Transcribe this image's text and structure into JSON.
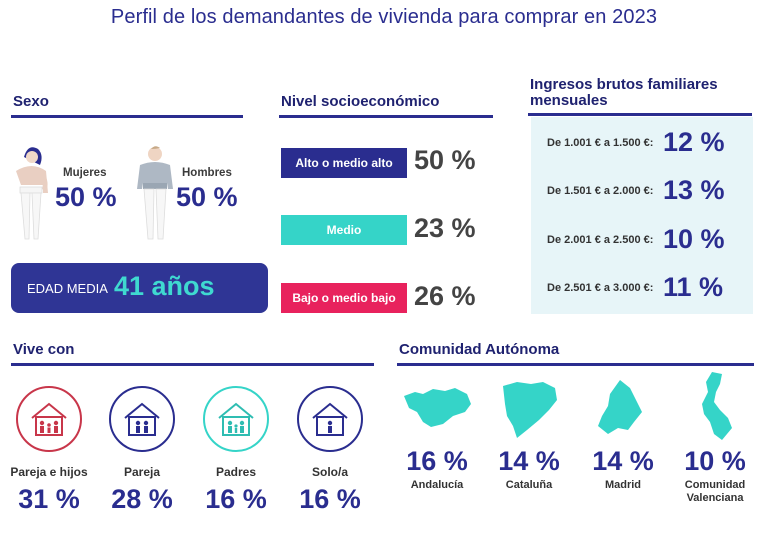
{
  "title": "Perfil de los demandantes de vivienda para comprar en 2023",
  "colors": {
    "primary": "#2a2d8f",
    "teal": "#35d4c8",
    "pink": "#e8225d",
    "panel": "#e7f5f8",
    "red": "#c8364a"
  },
  "sexo": {
    "heading": "Sexo",
    "mujeres": {
      "label": "Mujeres",
      "value": "50 %",
      "icon": "woman-figure-icon"
    },
    "hombres": {
      "label": "Hombres",
      "value": "50 %",
      "icon": "man-figure-icon"
    },
    "edad": {
      "label": "EDAD MEDIA",
      "value": "41 años"
    }
  },
  "nivel": {
    "heading": "Nivel socioeconómico",
    "items": [
      {
        "label": "Alto o medio alto",
        "value": "50 %",
        "color": "#2a2d8f"
      },
      {
        "label": "Medio",
        "value": "23 %",
        "color": "#35d4c8"
      },
      {
        "label": "Bajo o medio bajo",
        "value": "26 %",
        "color": "#e8225d"
      }
    ]
  },
  "ingresos": {
    "heading_line1": "Ingresos brutos familiares",
    "heading_line2": "mensuales",
    "items": [
      {
        "label": "De 1.001 € a 1.500 €:",
        "value": "12 %"
      },
      {
        "label": "De 1.501 € a 2.000 €:",
        "value": "13 %"
      },
      {
        "label": "De 2.001 € a 2.500 €:",
        "value": "10 %"
      },
      {
        "label": "De 2.501 € a 3.000 €:",
        "value": "11 %"
      }
    ]
  },
  "vive_con": {
    "heading": "Vive con",
    "items": [
      {
        "label": "Pareja e hijos",
        "value": "31 %",
        "color": "#c8364a",
        "icon": "house-family-icon"
      },
      {
        "label": "Pareja",
        "value": "28 %",
        "color": "#2a2d8f",
        "icon": "house-couple-icon"
      },
      {
        "label": "Padres",
        "value": "16 %",
        "color": "#35d4c8",
        "icon": "house-parents-icon"
      },
      {
        "label": "Solo/a",
        "value": "16 %",
        "color": "#2a2d8f",
        "icon": "house-single-icon"
      }
    ]
  },
  "comunidad": {
    "heading": "Comunidad Autónoma",
    "items": [
      {
        "label": "Andalucía",
        "label2": "",
        "value": "16 %",
        "icon": "andalucia-map-icon"
      },
      {
        "label": "Cataluña",
        "label2": "",
        "value": "14 %",
        "icon": "cataluna-map-icon"
      },
      {
        "label": "Madrid",
        "label2": "",
        "value": "14 %",
        "icon": "madrid-map-icon"
      },
      {
        "label": "Comunidad",
        "label2": "Valenciana",
        "value": "10 %",
        "icon": "valenciana-map-icon"
      }
    ]
  }
}
